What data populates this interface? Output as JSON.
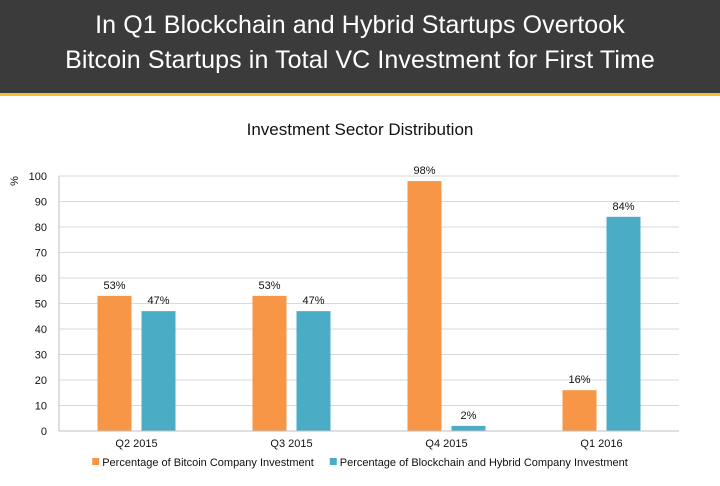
{
  "header": {
    "title_line1": "In Q1 Blockchain and Hybrid Startups Overtook",
    "title_line2": "Bitcoin Startups in Total VC Investment for First Time"
  },
  "colors": {
    "header_bg": "#3b3b3b",
    "accent": "#f2c230",
    "bitcoin": "#f79646",
    "blockchain": "#4bacc6"
  },
  "chart_data": {
    "type": "bar",
    "title": "Investment Sector Distribution",
    "ylabel": "%",
    "xlabel": "",
    "ylim": [
      0,
      100
    ],
    "yticks": [
      0,
      10,
      20,
      30,
      40,
      50,
      60,
      70,
      80,
      90,
      100
    ],
    "grid": true,
    "legend_position": "bottom",
    "categories": [
      "Q2 2015",
      "Q3 2015",
      "Q4 2015",
      "Q1 2016"
    ],
    "series": [
      {
        "name": "Percentage of Bitcoin Company Investment",
        "color": "#f79646",
        "values": [
          53,
          53,
          98,
          16
        ],
        "labels": [
          "53%",
          "53%",
          "98%",
          "16%"
        ]
      },
      {
        "name": "Percentage of Blockchain and Hybrid Company Investment",
        "color": "#4bacc6",
        "values": [
          47,
          47,
          2,
          84
        ],
        "labels": [
          "47%",
          "47%",
          "2%",
          "84%"
        ]
      }
    ]
  }
}
